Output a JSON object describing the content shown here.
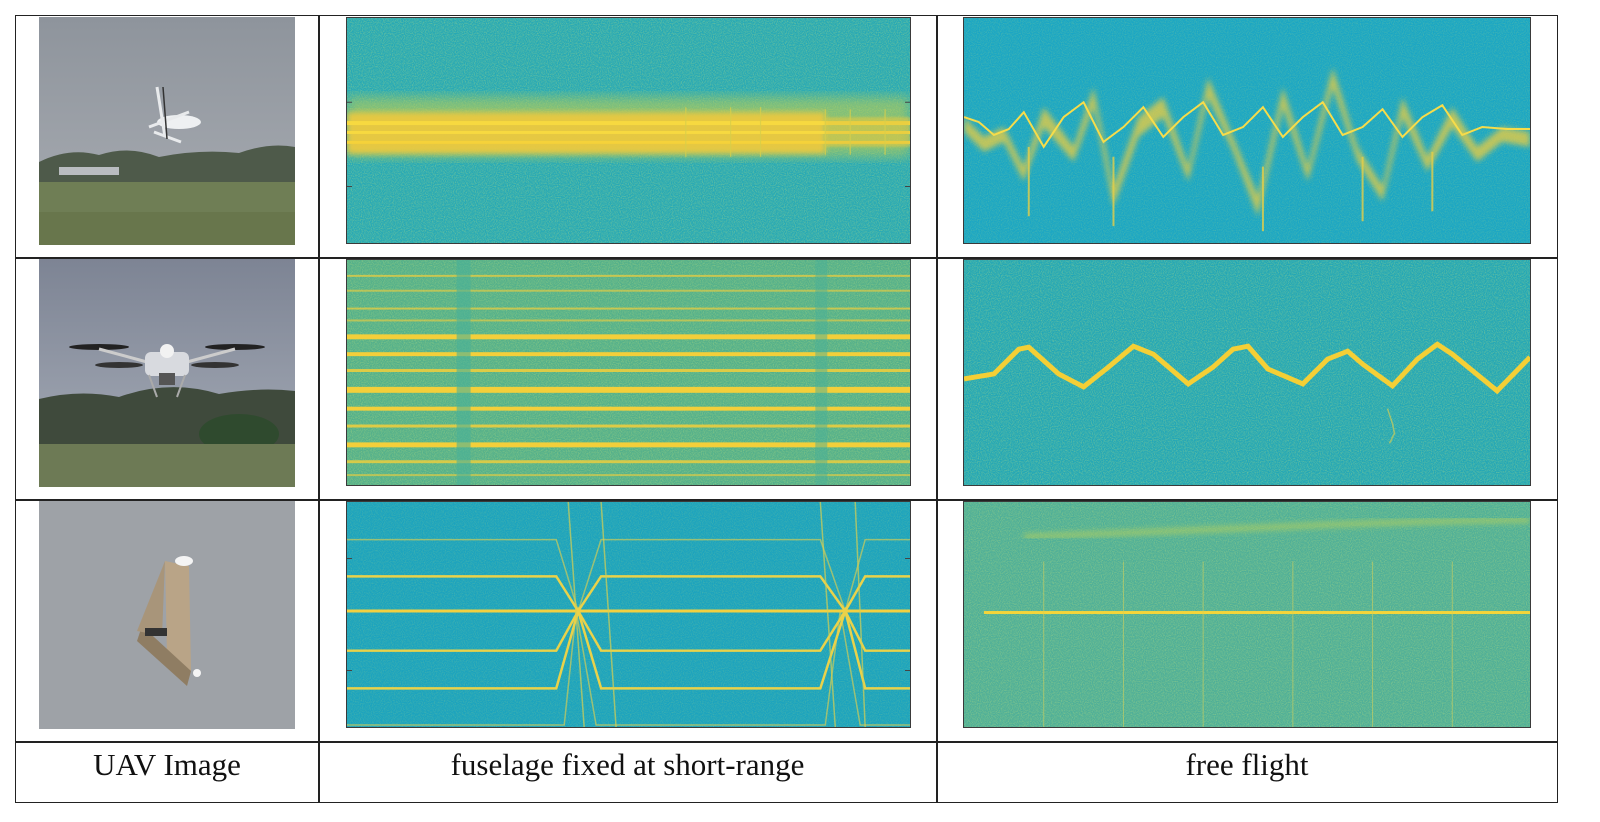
{
  "columns": [
    {
      "header": "UAV Image"
    },
    {
      "header": "fuselage fixed at short-range"
    },
    {
      "header": "free flight"
    }
  ],
  "rows": [
    {
      "uav_image": "helicopter-uav-photo",
      "fixed_spectrogram": "helicopter-fixed-spectrogram",
      "flight_spectrogram": "helicopter-flight-spectrogram"
    },
    {
      "uav_image": "quadcopter-uav-photo",
      "fixed_spectrogram": "quadcopter-fixed-spectrogram",
      "flight_spectrogram": "quadcopter-flight-spectrogram"
    },
    {
      "uav_image": "flying-wing-uav-photo",
      "fixed_spectrogram": "flying-wing-fixed-spectrogram",
      "flight_spectrogram": "flying-wing-flight-spectrogram"
    }
  ],
  "colors": {
    "spectrogram_background": "#1fa8b8",
    "spectrogram_signal": "#f3d23a",
    "sky": "#9aa2ad",
    "grass": "#6f7e55"
  }
}
